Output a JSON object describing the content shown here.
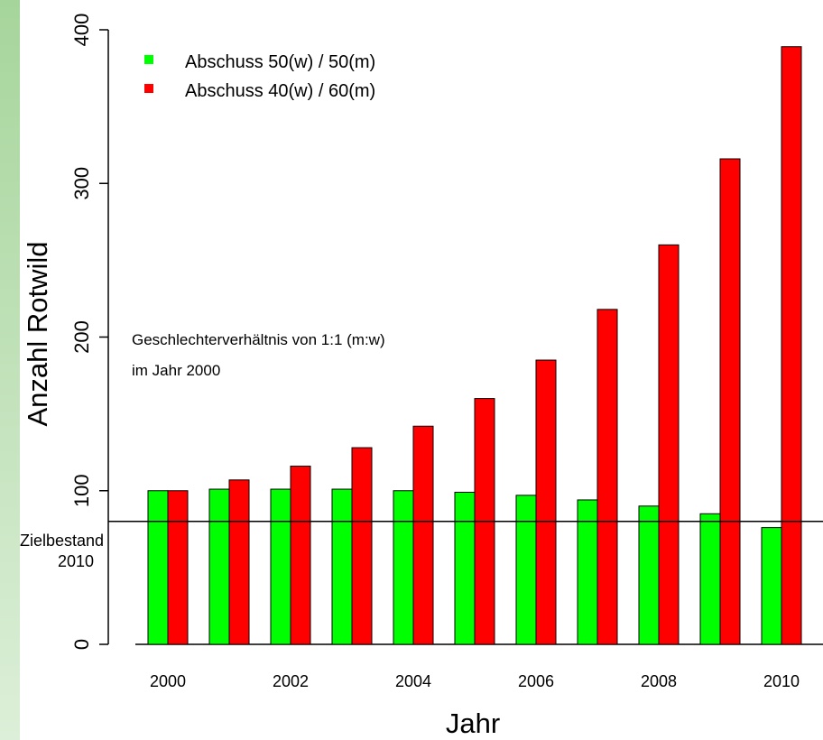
{
  "chart_data": {
    "type": "bar",
    "x": [
      "2000",
      "2001",
      "2002",
      "2003",
      "2004",
      "2005",
      "2006",
      "2007",
      "2008",
      "2009",
      "2010"
    ],
    "x_tick_labels": [
      "2000",
      "2002",
      "2004",
      "2006",
      "2008",
      "2010"
    ],
    "series": [
      {
        "name": "Abschuss 50(w) / 50(m)",
        "color": "#00ff00",
        "values": [
          100,
          101,
          101,
          101,
          100,
          99,
          97,
          94,
          90,
          85,
          76
        ]
      },
      {
        "name": "Abschuss 40(w) / 60(m)",
        "color": "#ff0000",
        "values": [
          100,
          107,
          116,
          128,
          142,
          160,
          185,
          218,
          260,
          316,
          389
        ]
      }
    ],
    "xlabel": "Jahr",
    "ylabel": "Anzahl Rotwild",
    "ylim": [
      0,
      400
    ],
    "yticks": [
      0,
      100,
      200,
      300,
      400
    ],
    "reference_line": {
      "value": 80,
      "label_line1": "Zielbestand",
      "label_line2": "2010"
    },
    "annotations": [
      "Geschlechterverhältnis von 1:1 (m:w)",
      "im Jahr 2000"
    ],
    "legend_position": "top-left",
    "grid": false
  }
}
